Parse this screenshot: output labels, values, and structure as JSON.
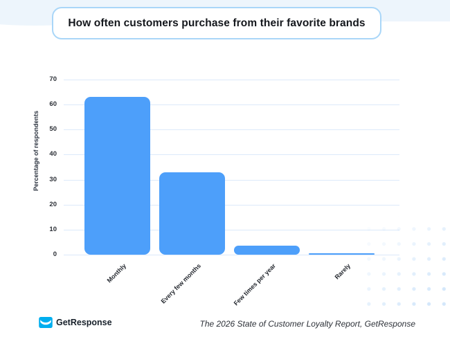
{
  "header": {
    "title": "How often customers purchase from their favorite brands",
    "band_color": "#edf5fc",
    "box_border_color": "#a9d6f8"
  },
  "chart_data": {
    "type": "bar",
    "categories": [
      "Monthly",
      "Every few months",
      "Few times per year",
      "Rarely"
    ],
    "values": [
      63,
      33,
      3.5,
      0.5
    ],
    "title": "How often customers purchase from their favorite brands",
    "xlabel": "",
    "ylabel": "Percentage of respondents",
    "ylim": [
      0,
      70
    ],
    "ytick_step": 10,
    "yticks": [
      0,
      10,
      20,
      30,
      40,
      50,
      60,
      70
    ],
    "bar_color": "#4d9ffa",
    "gridline_color": "#dce9fa",
    "grid": "horizontal",
    "legend": "none"
  },
  "footer": {
    "logo_text": "GetResponse",
    "logo_color": "#00aeef",
    "source": "The 2026 State of Customer Loyalty Report, GetResponse"
  }
}
